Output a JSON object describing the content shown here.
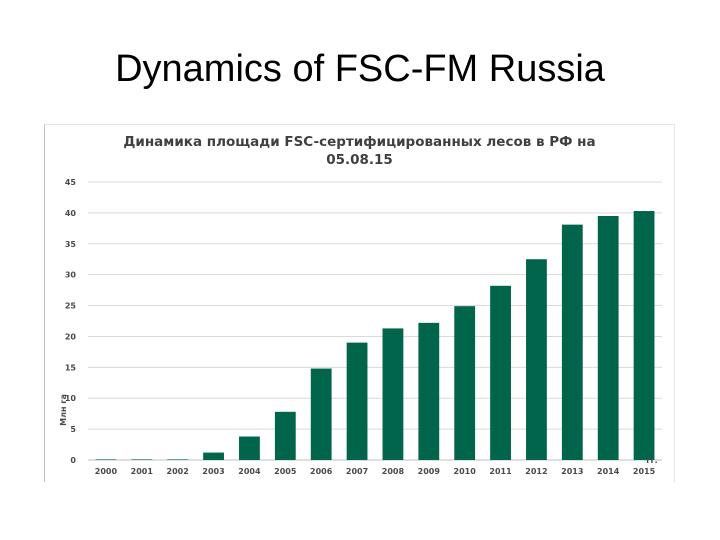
{
  "slide": {
    "title": "Dynamics of FSC-FM Russia"
  },
  "colors": {
    "bar": "#00654a",
    "grid": "#d9d9d9",
    "text": "#404040"
  },
  "chart_data": {
    "type": "bar",
    "title_line1": "Динамика площади FSC-сертифицированных лесов в РФ на",
    "title_line2": "05.08.15",
    "ylabel": "Млн га",
    "xlabel": "гг.",
    "ylim": [
      0,
      45
    ],
    "yticks": [
      0,
      5,
      10,
      15,
      20,
      25,
      30,
      35,
      40,
      45
    ],
    "grid": true,
    "categories": [
      "2000",
      "2001",
      "2002",
      "2003",
      "2004",
      "2005",
      "2006",
      "2007",
      "2008",
      "2009",
      "2010",
      "2011",
      "2012",
      "2013",
      "2014",
      "2015"
    ],
    "values": [
      0.1,
      0.1,
      0.1,
      1.2,
      3.8,
      7.8,
      14.8,
      19.0,
      21.3,
      22.2,
      24.9,
      28.2,
      32.5,
      38.1,
      39.5,
      40.3
    ]
  }
}
